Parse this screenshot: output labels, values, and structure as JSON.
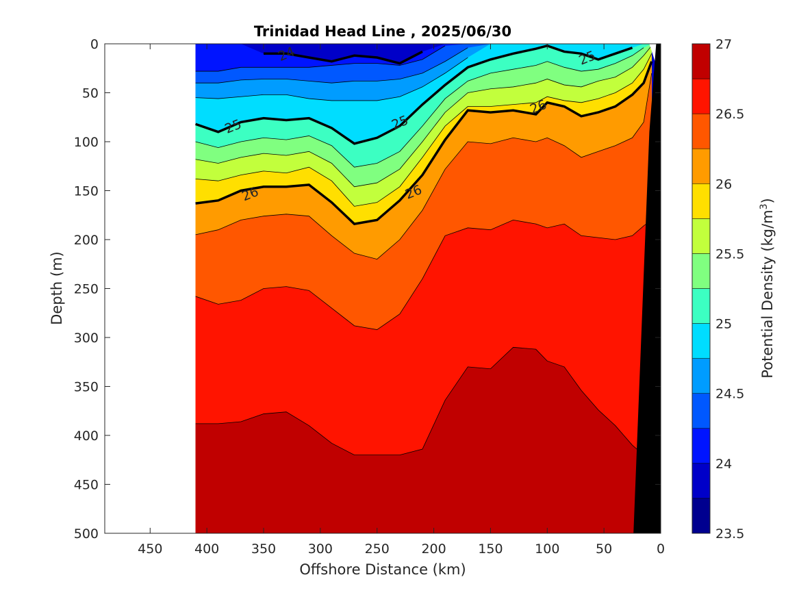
{
  "chart_data": {
    "type": "filled_contour",
    "title": "Trinidad Head Line , 2025/06/30",
    "xlabel": "Offshore Distance (km)",
    "ylabel": "Depth (m)",
    "xlim": [
      490,
      0
    ],
    "ylim": [
      0,
      500
    ],
    "x_reversed": true,
    "y_reversed": true,
    "xticks": [
      "450",
      "400",
      "350",
      "300",
      "250",
      "200",
      "150",
      "100",
      "50",
      "0"
    ],
    "xtick_values": [
      450,
      400,
      350,
      300,
      250,
      200,
      150,
      100,
      50,
      0
    ],
    "yticks": [
      "0",
      "50",
      "100",
      "150",
      "200",
      "250",
      "300",
      "350",
      "400",
      "450",
      "500"
    ],
    "ytick_values": [
      0,
      50,
      100,
      150,
      200,
      250,
      300,
      350,
      400,
      450,
      500
    ],
    "data_extent_km": [
      410,
      5
    ],
    "colorbar": {
      "label": "Potential Density (kg/m",
      "label_superscript": "3",
      "label_suffix": ")",
      "range": [
        23.5,
        27
      ],
      "step": 0.25,
      "tick_labels": [
        "27",
        "26.5",
        "26",
        "25.5",
        "25",
        "24.5",
        "24",
        "23.5"
      ],
      "tick_values": [
        27,
        26.5,
        26,
        25.5,
        25,
        24.5,
        24,
        23.5
      ],
      "colors": [
        "#00008f",
        "#0000c8",
        "#0014ff",
        "#0058ff",
        "#009cff",
        "#00ddff",
        "#3cffc2",
        "#80ff80",
        "#c2ff3c",
        "#ffdf00",
        "#ff9b00",
        "#ff5700",
        "#ff1400",
        "#c00000"
      ]
    },
    "contour_levels": [
      24,
      24.25,
      24.5,
      24.75,
      25,
      25.25,
      25.5,
      25.75,
      26,
      26.25,
      26.5,
      26.75
    ],
    "labeled_contours": [
      24,
      25,
      26
    ],
    "contour_label_text": [
      {
        "text": "24",
        "x": 330,
        "y": 10
      },
      {
        "text": "25",
        "x": 377,
        "y": 84
      },
      {
        "text": "25",
        "x": 230,
        "y": 80
      },
      {
        "text": "25",
        "x": 65,
        "y": 14
      },
      {
        "text": "26",
        "x": 362,
        "y": 153
      },
      {
        "text": "26",
        "x": 218,
        "y": 151
      },
      {
        "text": "26",
        "x": 108,
        "y": 64
      }
    ],
    "bathymetry_color": "#000000",
    "isopycnal_depths": {
      "x": [
        410,
        390,
        370,
        350,
        330,
        310,
        290,
        270,
        250,
        230,
        210,
        190,
        170,
        150,
        130,
        110,
        100,
        85,
        70,
        55,
        40,
        25,
        15,
        8
      ],
      "24": [
        null,
        null,
        null,
        10,
        10,
        14,
        18,
        12,
        14,
        20,
        8,
        null,
        null,
        null,
        null,
        null,
        null,
        null,
        null,
        null,
        null,
        null,
        null,
        null
      ],
      "24.25": [
        28,
        28,
        24,
        24,
        24,
        24,
        22,
        20,
        20,
        22,
        16,
        2,
        null,
        null,
        null,
        null,
        null,
        null,
        null,
        null,
        null,
        null,
        null,
        null
      ],
      "24.5": [
        40,
        40,
        37,
        36,
        36,
        38,
        40,
        38,
        38,
        36,
        30,
        18,
        4,
        null,
        null,
        null,
        null,
        null,
        null,
        null,
        null,
        null,
        null,
        null
      ],
      "24.75": [
        55,
        56,
        54,
        52,
        52,
        56,
        58,
        58,
        58,
        54,
        44,
        30,
        14,
        null,
        null,
        null,
        null,
        null,
        null,
        null,
        null,
        null,
        null,
        null
      ],
      "25": [
        82,
        90,
        80,
        76,
        78,
        76,
        86,
        102,
        96,
        84,
        62,
        42,
        24,
        16,
        10,
        5,
        2,
        8,
        10,
        16,
        10,
        4,
        null,
        null
      ],
      "25.25": [
        100,
        106,
        100,
        96,
        98,
        94,
        104,
        126,
        122,
        110,
        84,
        56,
        38,
        30,
        26,
        22,
        18,
        24,
        28,
        26,
        20,
        12,
        4,
        null
      ],
      "25.5": [
        118,
        122,
        116,
        112,
        114,
        110,
        122,
        146,
        142,
        128,
        100,
        70,
        50,
        46,
        44,
        40,
        36,
        42,
        44,
        38,
        34,
        24,
        12,
        2
      ],
      "25.75": [
        138,
        140,
        134,
        130,
        132,
        126,
        140,
        166,
        162,
        146,
        116,
        84,
        64,
        64,
        62,
        60,
        54,
        58,
        60,
        56,
        50,
        40,
        26,
        10
      ],
      "26": [
        163,
        160,
        150,
        146,
        146,
        144,
        162,
        184,
        180,
        160,
        134,
        98,
        68,
        70,
        68,
        72,
        60,
        64,
        74,
        70,
        64,
        52,
        40,
        18
      ],
      "26.25": [
        195,
        190,
        180,
        176,
        174,
        176,
        196,
        214,
        220,
        200,
        170,
        128,
        100,
        102,
        96,
        100,
        96,
        104,
        116,
        110,
        104,
        96,
        80,
        30
      ],
      "26.5": [
        258,
        266,
        262,
        250,
        248,
        252,
        270,
        288,
        292,
        276,
        240,
        196,
        188,
        190,
        180,
        184,
        188,
        184,
        196,
        198,
        200,
        196,
        186,
        180
      ],
      "26.75": [
        388,
        388,
        386,
        378,
        376,
        390,
        408,
        420,
        420,
        420,
        414,
        364,
        330,
        332,
        310,
        312,
        324,
        330,
        354,
        374,
        390,
        410,
        420,
        500
      ]
    }
  }
}
